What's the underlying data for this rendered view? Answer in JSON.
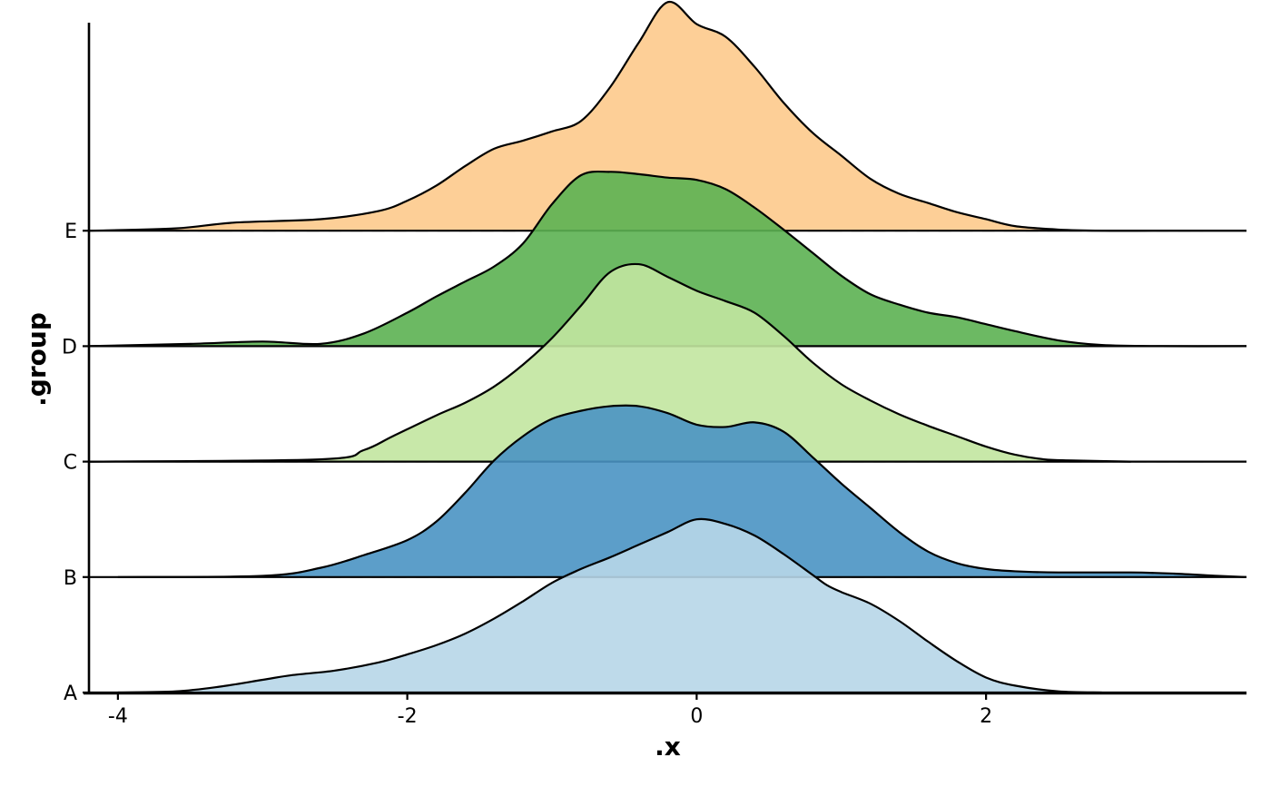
{
  "chart_data": {
    "type": "area",
    "subtype": "ridgeline",
    "title": "",
    "xlabel": ".x",
    "ylabel": ".group",
    "xlim": [
      -4.2,
      3.8
    ],
    "x_ticks": [
      -4,
      -2,
      0,
      2
    ],
    "x_tick_labels": [
      "-4",
      "-2",
      "0",
      "2"
    ],
    "categories": [
      "A",
      "B",
      "C",
      "D",
      "E"
    ],
    "grid": false,
    "legend": "none",
    "density_axis": {
      "description": "ridge heights in units of category spacing",
      "range": [
        0,
        2.8
      ]
    },
    "series": [
      {
        "category": "A",
        "color": "#b7d6e8",
        "x": [
          -4.0,
          -3.6,
          -3.3,
          -3.0,
          -2.8,
          -2.5,
          -2.2,
          -2.0,
          -1.8,
          -1.6,
          -1.4,
          -1.2,
          -1.0,
          -0.8,
          -0.6,
          -0.4,
          -0.2,
          0.0,
          0.2,
          0.4,
          0.6,
          0.8,
          0.9,
          1.0,
          1.2,
          1.4,
          1.6,
          1.8,
          2.0,
          2.2,
          2.5,
          2.8
        ],
        "y": [
          0.0,
          0.01,
          0.05,
          0.11,
          0.15,
          0.19,
          0.26,
          0.33,
          0.41,
          0.51,
          0.64,
          0.79,
          0.95,
          1.07,
          1.17,
          1.28,
          1.39,
          1.5,
          1.46,
          1.36,
          1.2,
          1.02,
          0.93,
          0.87,
          0.77,
          0.62,
          0.44,
          0.27,
          0.13,
          0.06,
          0.01,
          0.0
        ]
      },
      {
        "category": "B",
        "color": "#4a93c3",
        "x": [
          -4.0,
          -3.0,
          -2.6,
          -2.3,
          -2.0,
          -1.8,
          -1.6,
          -1.4,
          -1.2,
          -1.0,
          -0.8,
          -0.6,
          -0.4,
          -0.2,
          0.0,
          0.2,
          0.4,
          0.6,
          0.8,
          1.0,
          1.2,
          1.4,
          1.6,
          1.8,
          2.0,
          2.2,
          2.5,
          3.0,
          3.3,
          3.6,
          3.8
        ],
        "y": [
          0.0,
          0.01,
          0.08,
          0.19,
          0.32,
          0.48,
          0.73,
          1.01,
          1.22,
          1.37,
          1.44,
          1.48,
          1.48,
          1.42,
          1.32,
          1.3,
          1.34,
          1.26,
          1.04,
          0.81,
          0.6,
          0.39,
          0.22,
          0.12,
          0.07,
          0.05,
          0.04,
          0.04,
          0.03,
          0.01,
          0.0
        ]
      },
      {
        "category": "C",
        "color": "#c2e5a0",
        "x": [
          -4.2,
          -2.6,
          -2.3,
          -2.1,
          -1.8,
          -1.6,
          -1.4,
          -1.2,
          -1.0,
          -0.8,
          -0.6,
          -0.4,
          -0.2,
          0.0,
          0.2,
          0.4,
          0.6,
          0.8,
          1.0,
          1.2,
          1.4,
          1.6,
          1.8,
          2.0,
          2.2,
          2.4,
          2.6,
          3.0
        ],
        "y": [
          0.0,
          0.02,
          0.1,
          0.22,
          0.4,
          0.51,
          0.65,
          0.84,
          1.07,
          1.35,
          1.64,
          1.71,
          1.6,
          1.48,
          1.39,
          1.29,
          1.09,
          0.86,
          0.67,
          0.53,
          0.41,
          0.31,
          0.22,
          0.13,
          0.06,
          0.02,
          0.01,
          0.0
        ]
      },
      {
        "category": "D",
        "color": "#5cb152",
        "x": [
          -4.2,
          -3.5,
          -3.0,
          -2.6,
          -2.3,
          -2.0,
          -1.8,
          -1.6,
          -1.4,
          -1.2,
          -1.0,
          -0.8,
          -0.6,
          -0.4,
          -0.2,
          0.0,
          0.2,
          0.4,
          0.6,
          0.8,
          1.0,
          1.2,
          1.4,
          1.6,
          1.8,
          2.0,
          2.2,
          2.5,
          2.8,
          3.2,
          3.8
        ],
        "y": [
          0.0,
          0.02,
          0.04,
          0.02,
          0.11,
          0.29,
          0.43,
          0.56,
          0.69,
          0.89,
          1.23,
          1.48,
          1.51,
          1.49,
          1.46,
          1.44,
          1.36,
          1.2,
          1.01,
          0.81,
          0.61,
          0.45,
          0.36,
          0.29,
          0.25,
          0.19,
          0.13,
          0.05,
          0.01,
          0.0,
          0.0
        ]
      },
      {
        "category": "E",
        "color": "#fdca8c",
        "x": [
          -4.2,
          -3.6,
          -3.2,
          -2.6,
          -2.2,
          -2.0,
          -1.8,
          -1.6,
          -1.4,
          -1.2,
          -1.0,
          -0.8,
          -0.6,
          -0.4,
          -0.2,
          0.0,
          0.2,
          0.4,
          0.6,
          0.8,
          1.0,
          1.2,
          1.4,
          1.6,
          1.8,
          2.0,
          2.2,
          2.5,
          2.8,
          3.2,
          3.8
        ],
        "y": [
          0.0,
          0.02,
          0.07,
          0.1,
          0.17,
          0.26,
          0.39,
          0.56,
          0.71,
          0.78,
          0.86,
          0.95,
          1.24,
          1.63,
          1.98,
          1.79,
          1.68,
          1.42,
          1.11,
          0.85,
          0.65,
          0.45,
          0.32,
          0.24,
          0.16,
          0.1,
          0.04,
          0.01,
          0.0,
          0.0,
          0.0
        ]
      }
    ]
  }
}
